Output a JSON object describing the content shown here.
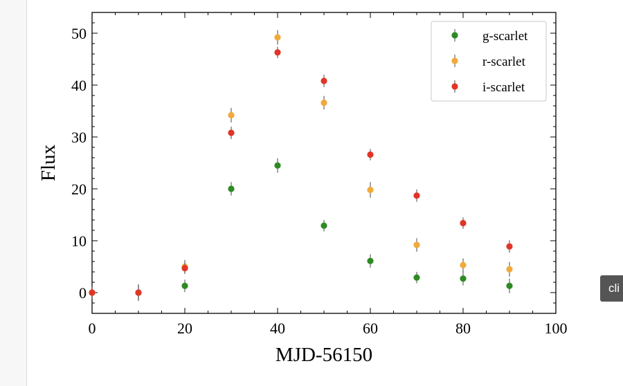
{
  "page": {
    "clip_button_label": "cli"
  },
  "chart_data": {
    "type": "scatter",
    "title": "",
    "xlabel": "MJD-56150",
    "ylabel": "Flux",
    "xlim": [
      0,
      100
    ],
    "ylim": [
      -4,
      54
    ],
    "x_ticks": [
      0,
      20,
      40,
      60,
      80,
      100
    ],
    "y_ticks": [
      0,
      10,
      20,
      30,
      40,
      50
    ],
    "grid": false,
    "legend_position": "top-right",
    "error_bars": true,
    "series": [
      {
        "name": "g-scarlet",
        "color": "#2e8b22",
        "x": [
          0,
          10,
          20,
          30,
          40,
          50,
          60,
          70,
          80,
          90
        ],
        "y": [
          0,
          0,
          1.3,
          20.0,
          24.5,
          12.9,
          6.1,
          2.9,
          2.7,
          1.3
        ],
        "yerr": [
          1.2,
          1.6,
          1.2,
          1.3,
          1.4,
          1.1,
          1.3,
          1.1,
          1.3,
          1.4
        ]
      },
      {
        "name": "r-scarlet",
        "color": "#f2a93b",
        "x": [
          0,
          10,
          20,
          30,
          40,
          50,
          60,
          70,
          80,
          90
        ],
        "y": [
          0,
          0,
          5.0,
          34.2,
          49.2,
          36.6,
          19.8,
          9.2,
          5.3,
          4.5
        ],
        "yerr": [
          1.2,
          1.6,
          1.3,
          1.4,
          1.4,
          1.3,
          1.5,
          1.3,
          1.3,
          1.4
        ]
      },
      {
        "name": "i-scarlet",
        "color": "#e03527",
        "x": [
          0,
          10,
          20,
          30,
          40,
          50,
          60,
          70,
          80,
          90
        ],
        "y": [
          0,
          0,
          4.7,
          30.8,
          46.3,
          40.8,
          26.6,
          18.7,
          13.4,
          8.9
        ],
        "yerr": [
          1.1,
          1.3,
          1.1,
          1.2,
          1.1,
          1.2,
          1.1,
          1.2,
          1.1,
          1.2
        ]
      }
    ]
  }
}
